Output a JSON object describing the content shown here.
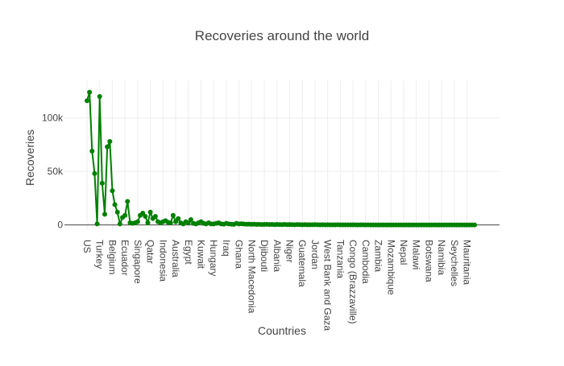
{
  "chart_data": {
    "type": "line",
    "title": "Recoveries around the world",
    "xlabel": "Countries",
    "ylabel": "Recoveries",
    "ylim": [
      -4000,
      135000
    ],
    "grid": true,
    "line_color": "#008000",
    "marker_color": "#008000",
    "y_ticks": [
      {
        "value": 0,
        "label": "0"
      },
      {
        "value": 50000,
        "label": "50k"
      },
      {
        "value": 100000,
        "label": "100k"
      }
    ],
    "x_tick_labels": [
      {
        "index": 0,
        "label": "US"
      },
      {
        "index": 5,
        "label": "Turkey"
      },
      {
        "index": 10,
        "label": "Belgium"
      },
      {
        "index": 15,
        "label": "Ecuador"
      },
      {
        "index": 20,
        "label": "Singapore"
      },
      {
        "index": 25,
        "label": "Qatar"
      },
      {
        "index": 30,
        "label": "Indonesia"
      },
      {
        "index": 35,
        "label": "Australia"
      },
      {
        "index": 40,
        "label": "Egypt"
      },
      {
        "index": 45,
        "label": "Kuwait"
      },
      {
        "index": 50,
        "label": "Hungary"
      },
      {
        "index": 55,
        "label": "Iraq"
      },
      {
        "index": 60,
        "label": "Ghana"
      },
      {
        "index": 65,
        "label": "North Macedonia"
      },
      {
        "index": 70,
        "label": "Djibouti"
      },
      {
        "index": 75,
        "label": "Albania"
      },
      {
        "index": 80,
        "label": "Niger"
      },
      {
        "index": 85,
        "label": "Guatemala"
      },
      {
        "index": 90,
        "label": "Jordan"
      },
      {
        "index": 95,
        "label": "West Bank and Gaza"
      },
      {
        "index": 100,
        "label": "Tanzania"
      },
      {
        "index": 105,
        "label": "Congo (Brazzaville)"
      },
      {
        "index": 110,
        "label": "Cambodia"
      },
      {
        "index": 115,
        "label": "Zambia"
      },
      {
        "index": 120,
        "label": "Mozambique"
      },
      {
        "index": 125,
        "label": "Nepal"
      },
      {
        "index": 130,
        "label": "Malawi"
      },
      {
        "index": 135,
        "label": "Botswana"
      },
      {
        "index": 140,
        "label": "Namibia"
      },
      {
        "index": 145,
        "label": "Seychelles"
      },
      {
        "index": 150,
        "label": "Mauritania"
      }
    ],
    "series": [
      {
        "values": [
          116000,
          124000,
          69000,
          48000,
          1000,
          120000,
          39000,
          10000,
          73000,
          78000,
          32000,
          19000,
          12000,
          1000,
          7000,
          9000,
          22000,
          2000,
          1500,
          2000,
          3000,
          9000,
          11000,
          8000,
          2000,
          12000,
          6000,
          8000,
          3000,
          2000,
          3000,
          4000,
          2500,
          2000,
          9000,
          3000,
          6000,
          2000,
          1000,
          3000,
          2000,
          5000,
          1500,
          1000,
          2000,
          3000,
          1500,
          1000,
          2000,
          1000,
          1000,
          1500,
          2000,
          1000,
          800,
          1500,
          1000,
          700,
          600,
          1500,
          1000,
          1200,
          900,
          700,
          800,
          600,
          700,
          500,
          600,
          400,
          500,
          600,
          400,
          500,
          300,
          500,
          400,
          300,
          500,
          300,
          400,
          300,
          200,
          400,
          300,
          200,
          300,
          200,
          250,
          200,
          300,
          200,
          150,
          200,
          150,
          200,
          150,
          100,
          150,
          200,
          100,
          150,
          100,
          150,
          100,
          100,
          120,
          80,
          100,
          90,
          80,
          100,
          70,
          80,
          60,
          70,
          60,
          80,
          50,
          60,
          50,
          40,
          60,
          50,
          40,
          50,
          30,
          40,
          50,
          30,
          40,
          30,
          20,
          30,
          25,
          20,
          30,
          20,
          15,
          20,
          15,
          20,
          10,
          15,
          10,
          12,
          10,
          8,
          6,
          5,
          4,
          3,
          2,
          1
        ]
      }
    ]
  }
}
